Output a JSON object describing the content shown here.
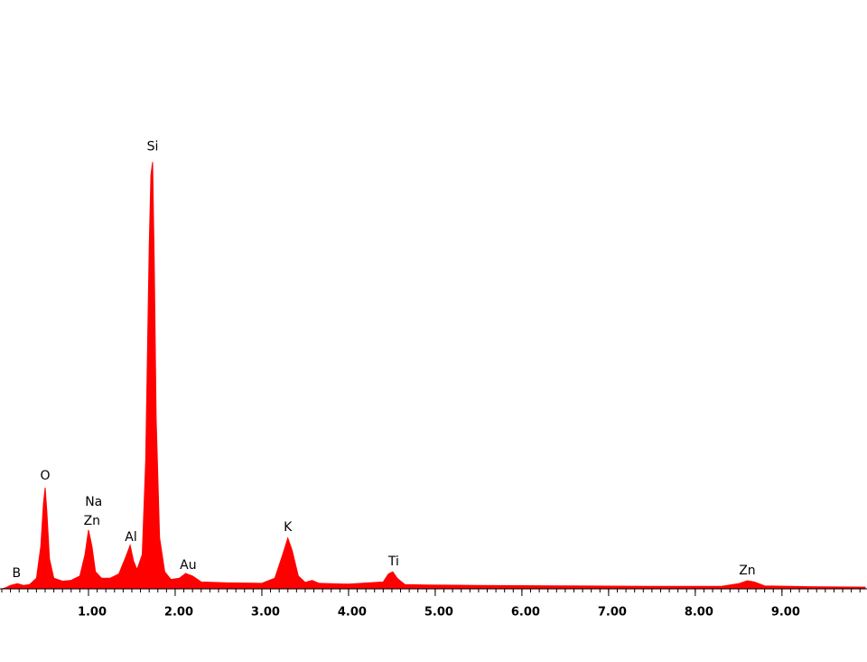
{
  "chart_data": {
    "type": "area",
    "color": "#ff0000",
    "x": [
      0.0,
      0.05,
      0.1,
      0.18,
      0.25,
      0.32,
      0.4,
      0.45,
      0.48,
      0.5,
      0.52,
      0.55,
      0.6,
      0.7,
      0.8,
      0.9,
      0.96,
      1.0,
      1.04,
      1.08,
      1.15,
      1.25,
      1.35,
      1.43,
      1.48,
      1.52,
      1.56,
      1.62,
      1.66,
      1.7,
      1.72,
      1.74,
      1.76,
      1.78,
      1.82,
      1.88,
      1.95,
      2.05,
      2.12,
      2.2,
      2.3,
      2.6,
      3.0,
      3.15,
      3.24,
      3.3,
      3.35,
      3.42,
      3.5,
      3.58,
      3.66,
      4.0,
      4.4,
      4.46,
      4.51,
      4.56,
      4.65,
      4.9,
      5.5,
      6.5,
      7.5,
      8.3,
      8.5,
      8.6,
      8.68,
      8.8,
      9.3,
      9.96
    ],
    "values": [
      0,
      0.3,
      0.8,
      1.2,
      0.8,
      1.0,
      2.5,
      10,
      20,
      23.7,
      18,
      7,
      2.5,
      1.8,
      2.0,
      3.0,
      8,
      13.8,
      10,
      4,
      2.5,
      2.5,
      3.5,
      7.5,
      10.2,
      6.5,
      4.5,
      8,
      30,
      80,
      97,
      100,
      75,
      40,
      12,
      4,
      2.2,
      2.5,
      3.6,
      3.0,
      1.6,
      1.4,
      1.3,
      2.5,
      8,
      11.9,
      9,
      3,
      1.5,
      2.0,
      1.3,
      1.1,
      1.6,
      3.5,
      4.0,
      2.5,
      1.0,
      0.9,
      0.8,
      0.7,
      0.6,
      0.6,
      1.2,
      1.9,
      1.6,
      0.7,
      0.5,
      0.4
    ],
    "xlim": [
      0,
      9.96
    ],
    "ylim": [
      0,
      138
    ],
    "xticks": [
      {
        "value": 1,
        "label": "1.00"
      },
      {
        "value": 2,
        "label": "2.00"
      },
      {
        "value": 3,
        "label": "3.00"
      },
      {
        "value": 4,
        "label": "4.00"
      },
      {
        "value": 5,
        "label": "5.00"
      },
      {
        "value": 6,
        "label": "6.00"
      },
      {
        "value": 7,
        "label": "7.00"
      },
      {
        "value": 8,
        "label": "8.00"
      },
      {
        "value": 9,
        "label": "9.00"
      }
    ],
    "annotations": [
      {
        "text": "B",
        "x": 0.17,
        "y": 3.6
      },
      {
        "text": "O",
        "x": 0.5,
        "y": 26.5
      },
      {
        "text": "Na",
        "x": 1.06,
        "y": 20.3
      },
      {
        "text": "Zn",
        "x": 1.04,
        "y": 15.9
      },
      {
        "text": "Al",
        "x": 1.49,
        "y": 12.1
      },
      {
        "text": "Si",
        "x": 1.74,
        "y": 103.6
      },
      {
        "text": "Au",
        "x": 2.15,
        "y": 5.5
      },
      {
        "text": "K",
        "x": 3.3,
        "y": 14.4
      },
      {
        "text": "Ti",
        "x": 4.52,
        "y": 6.4
      },
      {
        "text": "Zn",
        "x": 8.6,
        "y": 4.2
      }
    ]
  }
}
